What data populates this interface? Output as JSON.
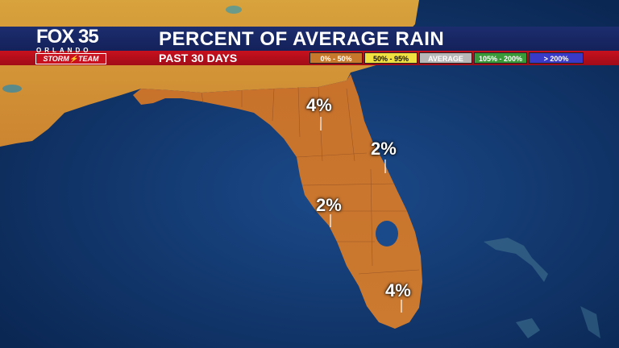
{
  "header": {
    "title": "PERCENT OF AVERAGE RAIN",
    "subtitle": "PAST 30 DAYS"
  },
  "logo": {
    "main": "FOX 35",
    "city": "ORLANDO",
    "team": "STORM⚡TEAM"
  },
  "legend": [
    {
      "label": "0% - 50%",
      "color": "#c8782a",
      "text_color": "#ffffff"
    },
    {
      "label": "50% - 95%",
      "color": "#f0e040",
      "text_color": "#111111"
    },
    {
      "label": "AVERAGE",
      "color": "#b8b8b8",
      "text_color": "#ffffff"
    },
    {
      "label": "105% - 200%",
      "color": "#3a9a3a",
      "text_color": "#ffffff"
    },
    {
      "label": "> 200%",
      "color": "#3a3ac8",
      "text_color": "#ffffff"
    }
  ],
  "markers": [
    {
      "name": "north-central-florida",
      "value": "4%"
    },
    {
      "name": "central-east-coast",
      "value": "2%"
    },
    {
      "name": "tampa-bay",
      "value": "2%"
    },
    {
      "name": "south-florida",
      "value": "4%"
    }
  ],
  "colors": {
    "ocean": "#123a72",
    "land_dry": "#c8742e",
    "land_north": "#d89a3a",
    "banner_blue": "#1c2d6e",
    "banner_red": "#c8101e"
  }
}
